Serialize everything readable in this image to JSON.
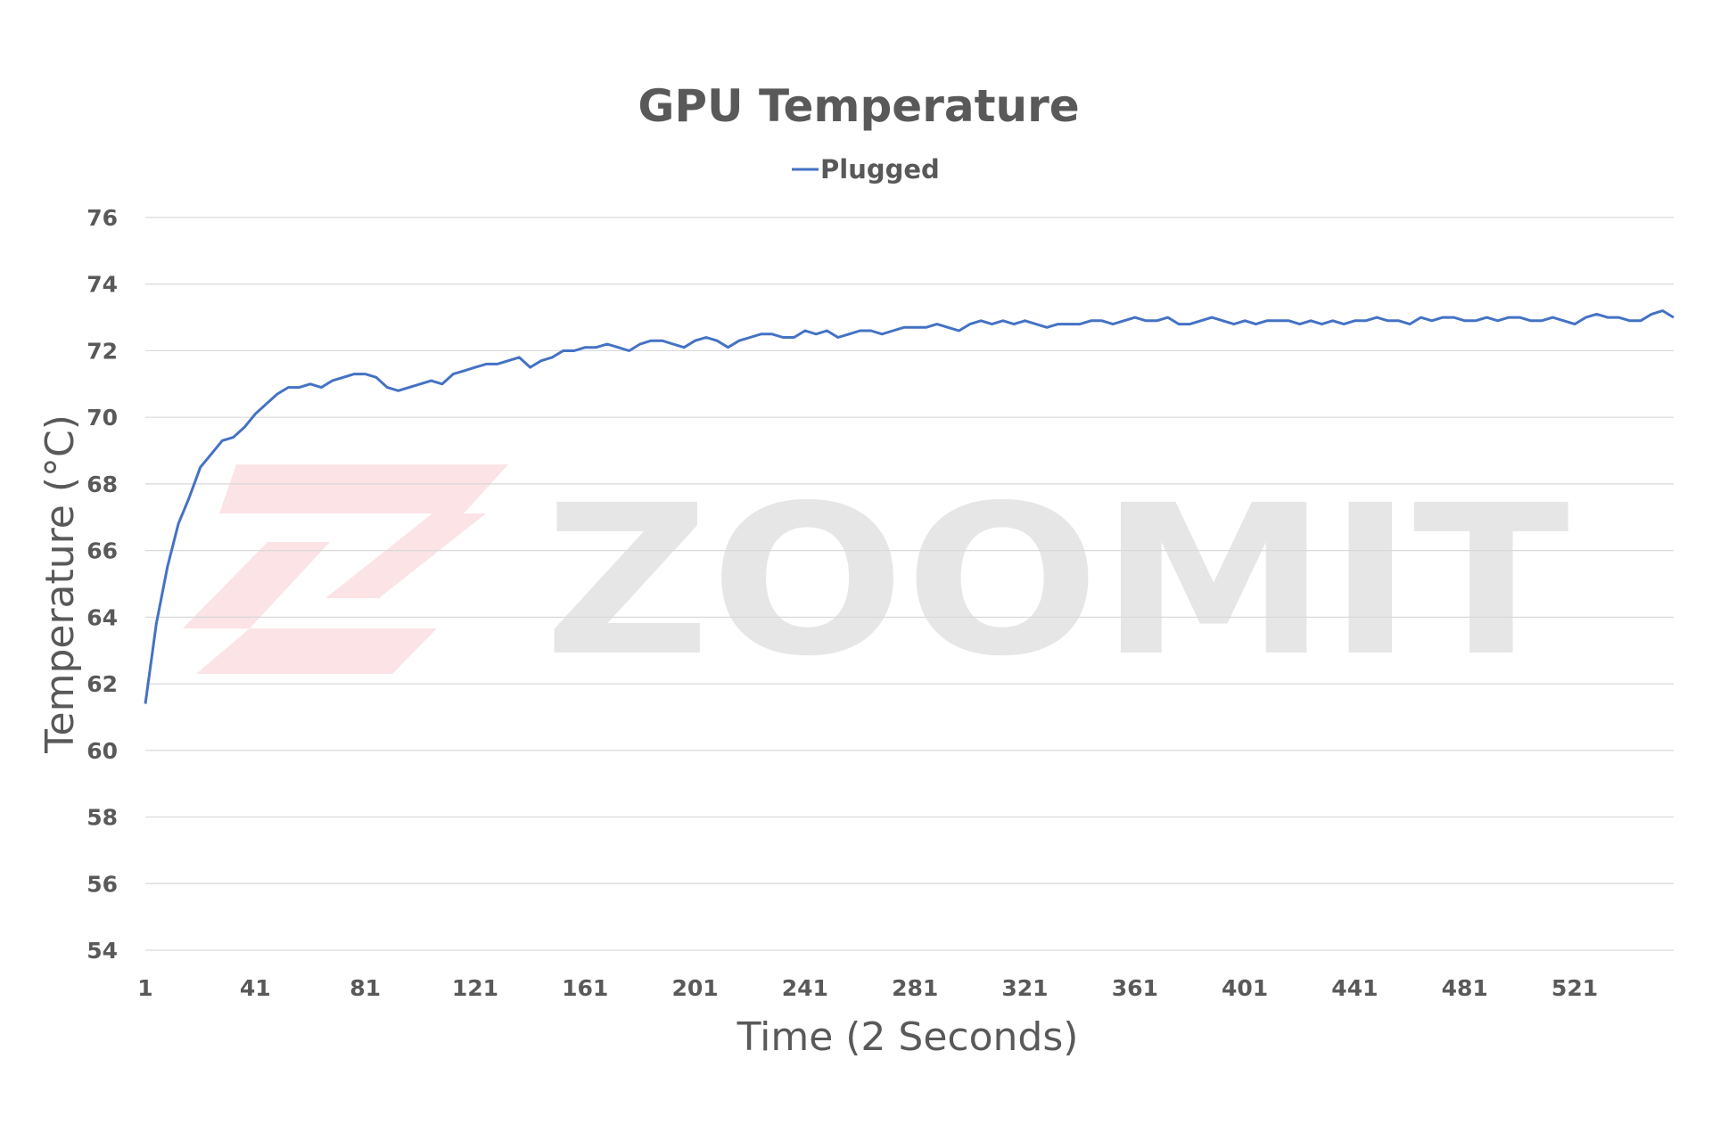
{
  "watermark": {
    "text": "ZOOMIT",
    "text_color": "#e6e6e6",
    "logo_color": "#fbe3e6"
  },
  "chart_data": {
    "type": "line",
    "title": "GPU Temperature",
    "xlabel": "Time (2 Seconds)",
    "ylabel": "Temperature (°C)",
    "ylim": [
      54,
      76
    ],
    "y_ticks": [
      "54",
      "56",
      "58",
      "60",
      "62",
      "64",
      "66",
      "68",
      "70",
      "72",
      "74",
      "76"
    ],
    "xlim": [
      1,
      557
    ],
    "x_ticks": [
      "1",
      "41",
      "81",
      "121",
      "161",
      "201",
      "241",
      "281",
      "321",
      "361",
      "401",
      "441",
      "481",
      "521"
    ],
    "grid": true,
    "legend_position": "top-center",
    "colors": {
      "series": "#4472c4",
      "grid": "#d9d9d9",
      "text": "#595959"
    },
    "series": [
      {
        "name": "Plugged",
        "color": "#4472c4",
        "x_start": 1,
        "x_step": 4,
        "values": [
          61.4,
          63.8,
          65.5,
          66.8,
          67.6,
          68.5,
          68.9,
          69.3,
          69.4,
          69.7,
          70.1,
          70.4,
          70.7,
          70.9,
          70.9,
          71.0,
          70.9,
          71.1,
          71.2,
          71.3,
          71.3,
          71.2,
          70.9,
          70.8,
          70.9,
          71.0,
          71.1,
          71.0,
          71.3,
          71.4,
          71.5,
          71.6,
          71.6,
          71.7,
          71.8,
          71.5,
          71.7,
          71.8,
          72.0,
          72.0,
          72.1,
          72.1,
          72.2,
          72.1,
          72.0,
          72.2,
          72.3,
          72.3,
          72.2,
          72.1,
          72.3,
          72.4,
          72.3,
          72.1,
          72.3,
          72.4,
          72.5,
          72.5,
          72.4,
          72.4,
          72.6,
          72.5,
          72.6,
          72.4,
          72.5,
          72.6,
          72.6,
          72.5,
          72.6,
          72.7,
          72.7,
          72.7,
          72.8,
          72.7,
          72.6,
          72.8,
          72.9,
          72.8,
          72.9,
          72.8,
          72.9,
          72.8,
          72.7,
          72.8,
          72.8,
          72.8,
          72.9,
          72.9,
          72.8,
          72.9,
          73.0,
          72.9,
          72.9,
          73.0,
          72.8,
          72.8,
          72.9,
          73.0,
          72.9,
          72.8,
          72.9,
          72.8,
          72.9,
          72.9,
          72.9,
          72.8,
          72.9,
          72.8,
          72.9,
          72.8,
          72.9,
          72.9,
          73.0,
          72.9,
          72.9,
          72.8,
          73.0,
          72.9,
          73.0,
          73.0,
          72.9,
          72.9,
          73.0,
          72.9,
          73.0,
          73.0,
          72.9,
          72.9,
          73.0,
          72.9,
          72.8,
          73.0,
          73.1,
          73.0,
          73.0,
          72.9,
          72.9,
          73.1,
          73.2,
          73.0
        ]
      }
    ]
  }
}
